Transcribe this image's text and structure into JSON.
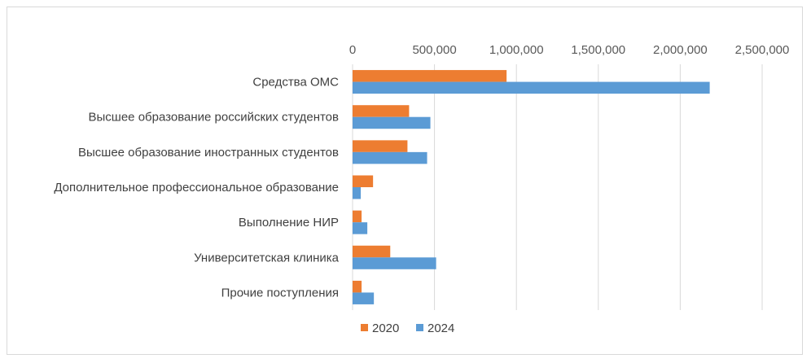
{
  "chart_data": {
    "type": "bar",
    "orientation": "horizontal",
    "categories": [
      "Средства ОМС",
      "Высшее образование российских студентов",
      "Высшее образование иностранных студентов",
      "Дополнительное профессиональное образование",
      "Выполнение НИР",
      "Университетская клиника",
      "Прочие поступления"
    ],
    "series": [
      {
        "name": "2020",
        "color": "#ED7D31",
        "values": [
          940000,
          345000,
          335000,
          125000,
          55000,
          230000,
          55000
        ]
      },
      {
        "name": "2024",
        "color": "#5B9BD5",
        "values": [
          2180000,
          475000,
          455000,
          50000,
          90000,
          510000,
          130000
        ]
      }
    ],
    "xlim": [
      0,
      2500000
    ],
    "ticks": [
      0,
      500000,
      1000000,
      1500000,
      2000000,
      2500000
    ],
    "tick_labels": [
      "0",
      "500,000",
      "1,000,000",
      "1,500,000",
      "2,000,000",
      "2,500,000"
    ],
    "x_axis_position": "top",
    "grid": true,
    "legend": "bottom"
  }
}
